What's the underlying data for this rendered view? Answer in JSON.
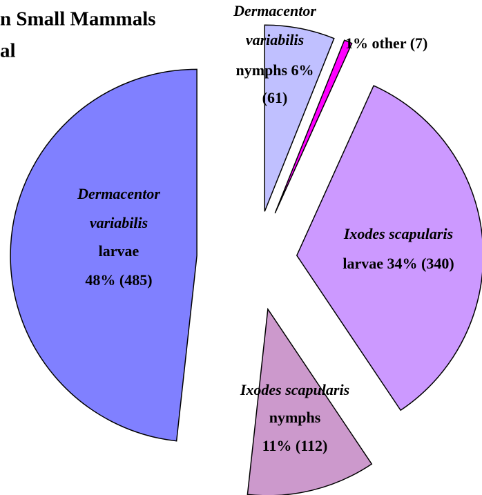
{
  "chart_data": {
    "type": "pie",
    "title_lines": [
      "n Small Mammals",
      "al"
    ],
    "categories": [
      "Dermacentor variabilis nymphs",
      "other",
      "Ixodes scapularis larvae",
      "Ixodes scapularis nymphs",
      "Dermacentor variabilis larvae"
    ],
    "slice_labels": [
      {
        "species": [
          "Dermacentor",
          "variabilis"
        ],
        "stage": "nymphs"
      },
      {
        "species": [],
        "stage": "other"
      },
      {
        "species": [
          "Ixodes scapularis"
        ],
        "stage": "larvae"
      },
      {
        "species": [
          "Ixodes scapularis"
        ],
        "stage": "nymphs"
      },
      {
        "species": [
          "Dermacentor",
          "variabilis"
        ],
        "stage": "larvae"
      }
    ],
    "values": [
      61,
      7,
      340,
      112,
      485
    ],
    "value_labels": [
      "(61)",
      "(7)",
      "(340)",
      "(112)",
      "(485)"
    ],
    "percents": [
      6,
      1,
      34,
      11,
      48
    ],
    "percent_labels": [
      "6%",
      "1%",
      "34%",
      "11%",
      "48%"
    ],
    "colors": [
      "#c0c0ff",
      "#ff00ff",
      "#cc99ff",
      "#cc99cc",
      "#8080ff"
    ]
  }
}
